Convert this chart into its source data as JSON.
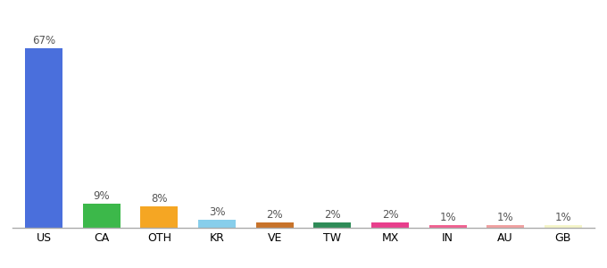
{
  "categories": [
    "US",
    "CA",
    "OTH",
    "KR",
    "VE",
    "TW",
    "MX",
    "IN",
    "AU",
    "GB"
  ],
  "values": [
    67,
    9,
    8,
    3,
    2,
    2,
    2,
    1,
    1,
    1
  ],
  "colors": [
    "#4a6fdc",
    "#3cb84a",
    "#f5a623",
    "#87ceeb",
    "#c8732a",
    "#2e8b57",
    "#e83e8c",
    "#f06090",
    "#f0a0a0",
    "#f5f5c8"
  ],
  "ylim": [
    0,
    75
  ],
  "bar_width": 0.65,
  "background_color": "#ffffff",
  "label_fontsize": 8.5,
  "tick_fontsize": 9
}
